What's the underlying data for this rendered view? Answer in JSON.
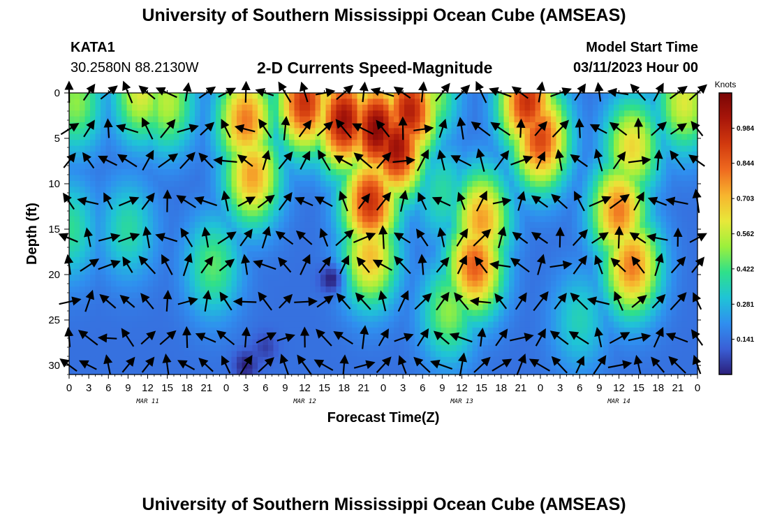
{
  "header": {
    "title": "University of Southern Mississippi Ocean Cube (AMSEAS)",
    "station_name": "KATA1",
    "station_coords": "30.2580N  88.2130W",
    "plot_title": "2-D Currents Speed-Magnitude",
    "start_label": "Model Start Time",
    "start_value": "03/11/2023 Hour 00"
  },
  "footer": {
    "title": "University of Southern Mississippi Ocean Cube (AMSEAS)"
  },
  "chart_data": {
    "type": "heatmap",
    "title": "2-D Currents Speed-Magnitude",
    "xlabel": "Forecast Time(Z)",
    "ylabel": "Depth (ft)",
    "x_hours_range": [
      0,
      96
    ],
    "y_range": [
      0,
      31
    ],
    "y_inverted": true,
    "x_tick_labels": [
      "0",
      "3",
      "6",
      "9",
      "12",
      "15",
      "18",
      "21",
      "0",
      "3",
      "6",
      "9",
      "12",
      "15",
      "18",
      "21",
      "0",
      "3",
      "6",
      "9",
      "12",
      "15",
      "18",
      "21",
      "0",
      "3",
      "6",
      "9",
      "12",
      "15",
      "18",
      "21",
      "0"
    ],
    "y_ticks": [
      0,
      5,
      10,
      15,
      20,
      25,
      30
    ],
    "day_labels": [
      {
        "label": "MAR 11",
        "hour": 12
      },
      {
        "label": "MAR 12",
        "hour": 36
      },
      {
        "label": "MAR 13",
        "hour": 60
      },
      {
        "label": "MAR 14",
        "hour": 84
      }
    ],
    "colorbar": {
      "unit": "Knots",
      "range": [
        0,
        1.125
      ],
      "tick_values": [
        0.141,
        0.281,
        0.422,
        0.562,
        0.703,
        0.844,
        0.984
      ],
      "tick_labels": [
        "0.141",
        "0.281",
        "0.422",
        "0.562",
        "0.703",
        "0.844",
        "0.984"
      ],
      "colormap": [
        "#2b1f7a",
        "#3a5fd6",
        "#2f8fef",
        "#1fc4d6",
        "#2fe08a",
        "#9cf03c",
        "#e8e83a",
        "#f7b52e",
        "#ef6a1f",
        "#d23a0e",
        "#a8160a",
        "#7a0505"
      ]
    },
    "speed_hotspots": [
      {
        "hour": 11,
        "depth": 0,
        "speed": 0.6
      },
      {
        "hour": 15,
        "depth": 1,
        "speed": 0.55
      },
      {
        "hour": 27,
        "depth": 3,
        "speed": 0.8
      },
      {
        "hour": 28,
        "depth": 9,
        "speed": 0.75
      },
      {
        "hour": 36,
        "depth": 1,
        "speed": 0.95
      },
      {
        "hour": 42,
        "depth": 3,
        "speed": 1.05
      },
      {
        "hour": 47,
        "depth": 4,
        "speed": 1.1
      },
      {
        "hour": 50,
        "depth": 6,
        "speed": 1.05
      },
      {
        "hour": 52,
        "depth": 2,
        "speed": 1.0
      },
      {
        "hour": 46,
        "depth": 12,
        "speed": 0.95
      },
      {
        "hour": 46,
        "depth": 18,
        "speed": 0.7
      },
      {
        "hour": 58,
        "depth": 24,
        "speed": 0.5
      },
      {
        "hour": 62,
        "depth": 19,
        "speed": 0.85
      },
      {
        "hour": 63,
        "depth": 14,
        "speed": 0.75
      },
      {
        "hour": 70,
        "depth": 1,
        "speed": 0.95
      },
      {
        "hour": 72,
        "depth": 5,
        "speed": 0.9
      },
      {
        "hour": 84,
        "depth": 13,
        "speed": 0.8
      },
      {
        "hour": 86,
        "depth": 19,
        "speed": 0.8
      },
      {
        "hour": 86,
        "depth": 6,
        "speed": 0.65
      },
      {
        "hour": 94,
        "depth": 1,
        "speed": 0.6
      },
      {
        "hour": 22,
        "depth": 19,
        "speed": 0.45
      },
      {
        "hour": 1,
        "depth": 1,
        "speed": 0.5
      },
      {
        "hour": 0,
        "depth": 15,
        "speed": 0.4
      },
      {
        "hour": 9,
        "depth": 15,
        "speed": 0.38
      },
      {
        "hour": 55,
        "depth": 0,
        "speed": 0.55
      },
      {
        "hour": 57,
        "depth": 11,
        "speed": 0.38
      },
      {
        "hour": 78,
        "depth": 25,
        "speed": 0.35
      }
    ],
    "background_speed": 0.14,
    "low_spots": [
      {
        "hour": 40,
        "depth": 20.5,
        "speed": 0.0
      },
      {
        "hour": 27,
        "depth": 30,
        "speed": 0.0
      },
      {
        "hour": 30,
        "depth": 28,
        "speed": 0.05
      }
    ],
    "vector_rows_depth": [
      0,
      4,
      7.5,
      12,
      16,
      19,
      23,
      27,
      30
    ],
    "vector_step_hours": 3
  }
}
